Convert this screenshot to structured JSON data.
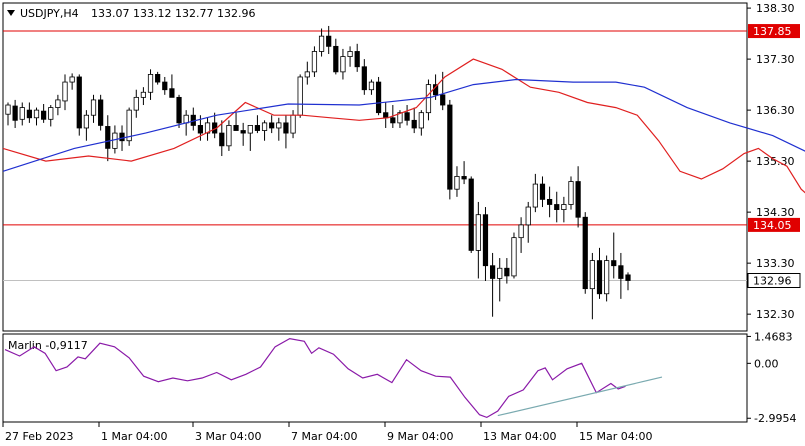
{
  "header": {
    "symbol_tf": "USDJPY,H4",
    "ohlc": "133.07 133.12 132.77 132.96"
  },
  "indicator": {
    "label": "Marlin -0,9117"
  },
  "chart_data": [
    {
      "type": "candlestick",
      "yticks": [
        138.3,
        137.3,
        136.3,
        135.3,
        134.3,
        133.3,
        132.3
      ],
      "ylim": [
        131.97,
        138.4
      ],
      "current_price": 132.96,
      "hlines": [
        {
          "price": 137.85,
          "label": "137.85",
          "color": "#e00000"
        },
        {
          "price": 134.05,
          "label": "134.05",
          "color": "#e00000"
        }
      ],
      "xticks": [
        "27 Feb 2023",
        "1 Mar 04:00",
        "3 Mar 04:00",
        "7 Mar 04:00",
        "9 Mar 04:00",
        "13 Mar 04:00",
        "15 Mar 04:00"
      ],
      "candles": [
        [
          136.22,
          136.45,
          136.0,
          136.4
        ],
        [
          136.38,
          136.5,
          135.95,
          136.1
        ],
        [
          136.12,
          136.45,
          136.0,
          136.35
        ],
        [
          136.3,
          136.45,
          136.05,
          136.15
        ],
        [
          136.15,
          136.35,
          136.0,
          136.3
        ],
        [
          136.28,
          136.42,
          136.05,
          136.12
        ],
        [
          136.12,
          136.4,
          135.98,
          136.35
        ],
        [
          136.35,
          136.6,
          136.2,
          136.5
        ],
        [
          136.48,
          137.0,
          136.3,
          136.85
        ],
        [
          136.85,
          137.02,
          136.7,
          136.95
        ],
        [
          136.95,
          137.0,
          135.8,
          135.95
        ],
        [
          135.95,
          136.3,
          135.7,
          136.2
        ],
        [
          136.2,
          136.6,
          136.05,
          136.5
        ],
        [
          136.5,
          136.6,
          135.9,
          136.0
        ],
        [
          135.98,
          136.2,
          135.3,
          135.55
        ],
        [
          135.55,
          136.0,
          135.45,
          135.85
        ],
        [
          135.85,
          136.0,
          135.5,
          135.7
        ],
        [
          135.7,
          136.35,
          135.6,
          136.3
        ],
        [
          136.3,
          136.7,
          136.15,
          136.55
        ],
        [
          136.55,
          136.75,
          136.4,
          136.65
        ],
        [
          136.65,
          137.1,
          136.5,
          137.0
        ],
        [
          137.0,
          137.05,
          136.8,
          136.85
        ],
        [
          136.85,
          136.95,
          136.6,
          136.7
        ],
        [
          136.72,
          137.0,
          136.6,
          136.55
        ],
        [
          136.55,
          136.6,
          135.95,
          136.05
        ],
        [
          136.05,
          136.3,
          135.8,
          136.2
        ],
        [
          136.2,
          136.35,
          135.9,
          136.0
        ],
        [
          136.0,
          136.2,
          135.7,
          135.85
        ],
        [
          135.85,
          136.15,
          135.7,
          136.05
        ],
        [
          136.05,
          136.25,
          135.75,
          135.85
        ],
        [
          135.85,
          136.1,
          135.4,
          135.6
        ],
        [
          135.6,
          136.1,
          135.5,
          136.0
        ],
        [
          136.0,
          136.25,
          135.9,
          135.9
        ],
        [
          135.9,
          136.05,
          135.6,
          135.85
        ],
        [
          135.85,
          136.0,
          135.5,
          136.0
        ],
        [
          136.0,
          136.2,
          135.85,
          135.9
        ],
        [
          135.9,
          136.1,
          135.7,
          136.05
        ],
        [
          136.05,
          136.2,
          135.85,
          135.95
        ],
        [
          135.95,
          136.15,
          135.7,
          136.05
        ],
        [
          136.05,
          136.2,
          135.55,
          135.85
        ],
        [
          135.85,
          136.3,
          135.75,
          136.2
        ],
        [
          136.2,
          137.0,
          136.15,
          136.95
        ],
        [
          136.95,
          137.25,
          136.8,
          137.05
        ],
        [
          137.05,
          137.55,
          136.95,
          137.45
        ],
        [
          137.45,
          137.9,
          137.35,
          137.75
        ],
        [
          137.75,
          137.95,
          137.4,
          137.55
        ],
        [
          137.55,
          137.7,
          137.0,
          137.05
        ],
        [
          137.05,
          137.5,
          136.9,
          137.35
        ],
        [
          137.35,
          137.55,
          137.15,
          137.45
        ],
        [
          137.45,
          137.6,
          137.05,
          137.15
        ],
        [
          137.15,
          137.3,
          136.6,
          136.7
        ],
        [
          136.7,
          136.9,
          136.6,
          136.85
        ],
        [
          136.85,
          136.95,
          136.2,
          136.25
        ],
        [
          136.25,
          136.45,
          135.95,
          136.15
        ],
        [
          136.15,
          136.4,
          135.95,
          136.05
        ],
        [
          136.05,
          136.3,
          135.95,
          136.25
        ],
        [
          136.25,
          136.4,
          136.0,
          136.1
        ],
        [
          136.1,
          136.35,
          135.85,
          135.95
        ],
        [
          135.95,
          136.3,
          135.8,
          136.25
        ],
        [
          136.25,
          136.9,
          136.1,
          136.8
        ],
        [
          136.8,
          137.0,
          136.5,
          136.6
        ],
        [
          136.6,
          137.05,
          136.3,
          136.4
        ],
        [
          136.4,
          136.5,
          134.55,
          134.75
        ],
        [
          134.75,
          135.2,
          134.6,
          135.0
        ],
        [
          135.0,
          135.3,
          134.85,
          134.95
        ],
        [
          134.95,
          135.0,
          133.5,
          133.55
        ],
        [
          133.55,
          134.5,
          133.0,
          134.25
        ],
        [
          134.25,
          134.4,
          132.95,
          133.25
        ],
        [
          133.25,
          133.5,
          132.25,
          133.0
        ],
        [
          133.0,
          133.4,
          132.55,
          133.2
        ],
        [
          133.2,
          133.4,
          132.9,
          133.05
        ],
        [
          133.05,
          133.9,
          133.0,
          133.8
        ],
        [
          133.8,
          134.2,
          133.5,
          134.05
        ],
        [
          134.05,
          134.5,
          133.7,
          134.4
        ],
        [
          134.4,
          135.05,
          134.3,
          134.85
        ],
        [
          134.85,
          135.0,
          134.4,
          134.55
        ],
        [
          134.55,
          134.8,
          134.2,
          134.45
        ],
        [
          134.45,
          134.7,
          134.1,
          134.35
        ],
        [
          134.35,
          134.6,
          134.1,
          134.45
        ],
        [
          134.45,
          135.0,
          134.35,
          134.9
        ],
        [
          134.9,
          135.2,
          134.0,
          134.2
        ],
        [
          134.2,
          134.3,
          132.7,
          132.8
        ],
        [
          132.8,
          133.5,
          132.2,
          133.35
        ],
        [
          133.35,
          133.6,
          132.6,
          132.7
        ],
        [
          132.7,
          133.45,
          132.55,
          133.35
        ],
        [
          133.35,
          133.9,
          133.0,
          133.25
        ],
        [
          133.25,
          133.5,
          132.6,
          133.0
        ],
        [
          133.07,
          133.12,
          132.77,
          132.96
        ]
      ],
      "ma_red": [
        [
          0,
          135.55
        ],
        [
          6,
          135.3
        ],
        [
          12,
          135.4
        ],
        [
          18,
          135.3
        ],
        [
          24,
          135.55
        ],
        [
          30,
          135.95
        ],
        [
          34,
          136.45
        ],
        [
          38,
          136.2
        ],
        [
          42,
          136.2
        ],
        [
          46,
          136.15
        ],
        [
          50,
          136.1
        ],
        [
          54,
          136.15
        ],
        [
          58,
          136.35
        ],
        [
          62,
          136.95
        ],
        [
          66,
          137.3
        ],
        [
          70,
          137.1
        ],
        [
          74,
          136.75
        ],
        [
          78,
          136.65
        ],
        [
          82,
          136.45
        ],
        [
          86,
          136.35
        ],
        [
          89,
          136.2
        ],
        [
          92,
          135.7
        ],
        [
          95,
          135.1
        ],
        [
          98,
          134.95
        ],
        [
          101,
          135.15
        ],
        [
          104,
          135.45
        ],
        [
          106,
          135.55
        ],
        [
          108,
          135.35
        ],
        [
          110,
          135.2
        ],
        [
          112,
          134.75
        ],
        [
          114,
          134.5
        ]
      ],
      "ma_blue": [
        [
          0,
          135.1
        ],
        [
          10,
          135.55
        ],
        [
          20,
          135.85
        ],
        [
          30,
          136.2
        ],
        [
          40,
          136.42
        ],
        [
          50,
          136.4
        ],
        [
          60,
          136.55
        ],
        [
          66,
          136.8
        ],
        [
          72,
          136.9
        ],
        [
          80,
          136.85
        ],
        [
          86,
          136.85
        ],
        [
          90,
          136.75
        ],
        [
          96,
          136.35
        ],
        [
          102,
          136.05
        ],
        [
          108,
          135.8
        ],
        [
          114,
          135.4
        ]
      ]
    },
    {
      "type": "line",
      "series_name": "Marlin",
      "yticks": [
        1.4683,
        0.0,
        -2.9954
      ],
      "ylim": [
        -3.2,
        1.6
      ],
      "values": [
        [
          0,
          0.75
        ],
        [
          4,
          0.4
        ],
        [
          8,
          0.9
        ],
        [
          11,
          0.55
        ],
        [
          14,
          -0.4
        ],
        [
          17,
          -0.2
        ],
        [
          20,
          0.35
        ],
        [
          22,
          0.25
        ],
        [
          26,
          1.1
        ],
        [
          30,
          0.9
        ],
        [
          34,
          0.3
        ],
        [
          38,
          -0.7
        ],
        [
          42,
          -1.0
        ],
        [
          46,
          -0.8
        ],
        [
          50,
          -0.95
        ],
        [
          54,
          -0.8
        ],
        [
          58,
          -0.5
        ],
        [
          62,
          -0.9
        ],
        [
          66,
          -0.6
        ],
        [
          70,
          -0.2
        ],
        [
          74,
          0.9
        ],
        [
          78,
          1.35
        ],
        [
          82,
          1.2
        ],
        [
          84,
          0.55
        ],
        [
          86,
          0.85
        ],
        [
          90,
          0.5
        ],
        [
          94,
          -0.3
        ],
        [
          98,
          -0.8
        ],
        [
          102,
          -0.6
        ],
        [
          106,
          -1.05
        ],
        [
          110,
          0.2
        ],
        [
          114,
          -0.4
        ],
        [
          118,
          -0.7
        ],
        [
          122,
          -0.75
        ],
        [
          126,
          -1.85
        ],
        [
          130,
          -2.8
        ],
        [
          132,
          -2.95
        ],
        [
          135,
          -2.6
        ],
        [
          138,
          -1.8
        ],
        [
          142,
          -1.45
        ],
        [
          146,
          -0.4
        ],
        [
          148,
          -0.25
        ],
        [
          150,
          -0.9
        ],
        [
          154,
          -0.3
        ],
        [
          158,
          0.0
        ],
        [
          162,
          -1.6
        ],
        [
          166,
          -1.1
        ],
        [
          168,
          -1.4
        ],
        [
          170,
          -1.25
        ]
      ],
      "trendline": [
        [
          135,
          -2.85
        ],
        [
          180,
          -0.75
        ]
      ]
    }
  ],
  "colors": {
    "ma_red": "#e02020",
    "ma_blue": "#2030d0",
    "marlin": "#8a1aa8",
    "trendline": "#7aaab0",
    "level": "#e00000"
  }
}
